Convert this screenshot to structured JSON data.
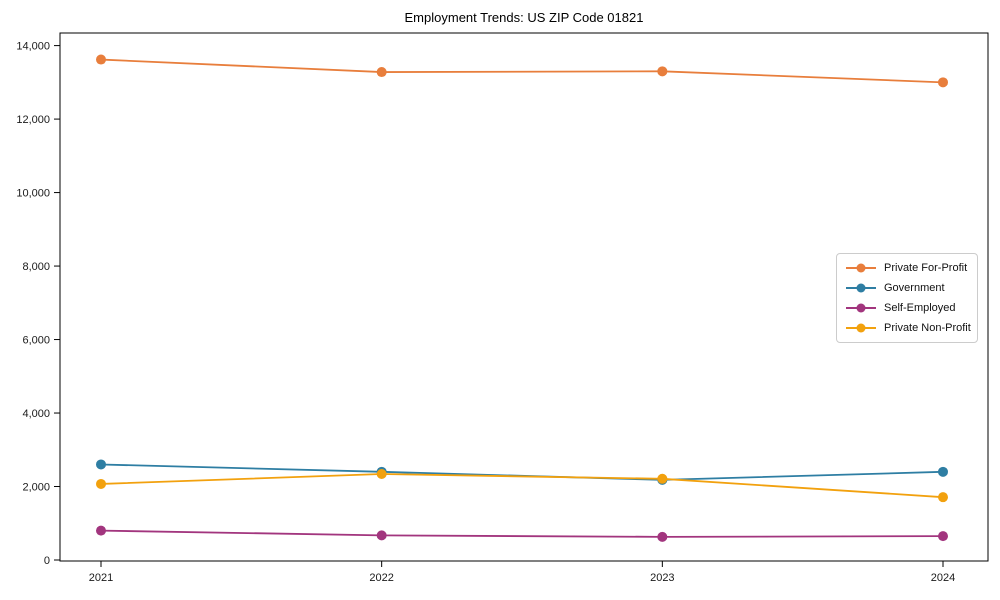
{
  "figure": {
    "background": "#ffffff",
    "axis_color": "#000000",
    "tick_label_color": "#1a1a1a",
    "legend_border_color": "#cccccc"
  },
  "chart_data": {
    "type": "line",
    "title": "Employment Trends: US ZIP Code 01821",
    "x": [
      2021,
      2022,
      2023,
      2024
    ],
    "x_tick_labels": [
      "2021",
      "2022",
      "2023",
      "2024"
    ],
    "xlabel": "",
    "ylabel": "",
    "ylim": [
      0,
      14000
    ],
    "y_ticks": [
      0,
      2000,
      4000,
      6000,
      8000,
      10000,
      12000,
      14000
    ],
    "y_tick_labels": [
      "0",
      "2,000",
      "4,000",
      "6,000",
      "8,000",
      "10,000",
      "12,000",
      "14,000"
    ],
    "grid": false,
    "marker": "circle",
    "legend_position": "center-right",
    "series": [
      {
        "name": "Private For-Profit",
        "color": "#E87E3C",
        "values": [
          13620,
          13280,
          13300,
          13000
        ]
      },
      {
        "name": "Government",
        "color": "#2E7EA3",
        "values": [
          2600,
          2400,
          2180,
          2400
        ]
      },
      {
        "name": "Self-Employed",
        "color": "#A2357E",
        "values": [
          800,
          670,
          630,
          650
        ]
      },
      {
        "name": "Private Non-Profit",
        "color": "#F2A10E",
        "values": [
          2070,
          2340,
          2210,
          1710
        ]
      }
    ]
  }
}
